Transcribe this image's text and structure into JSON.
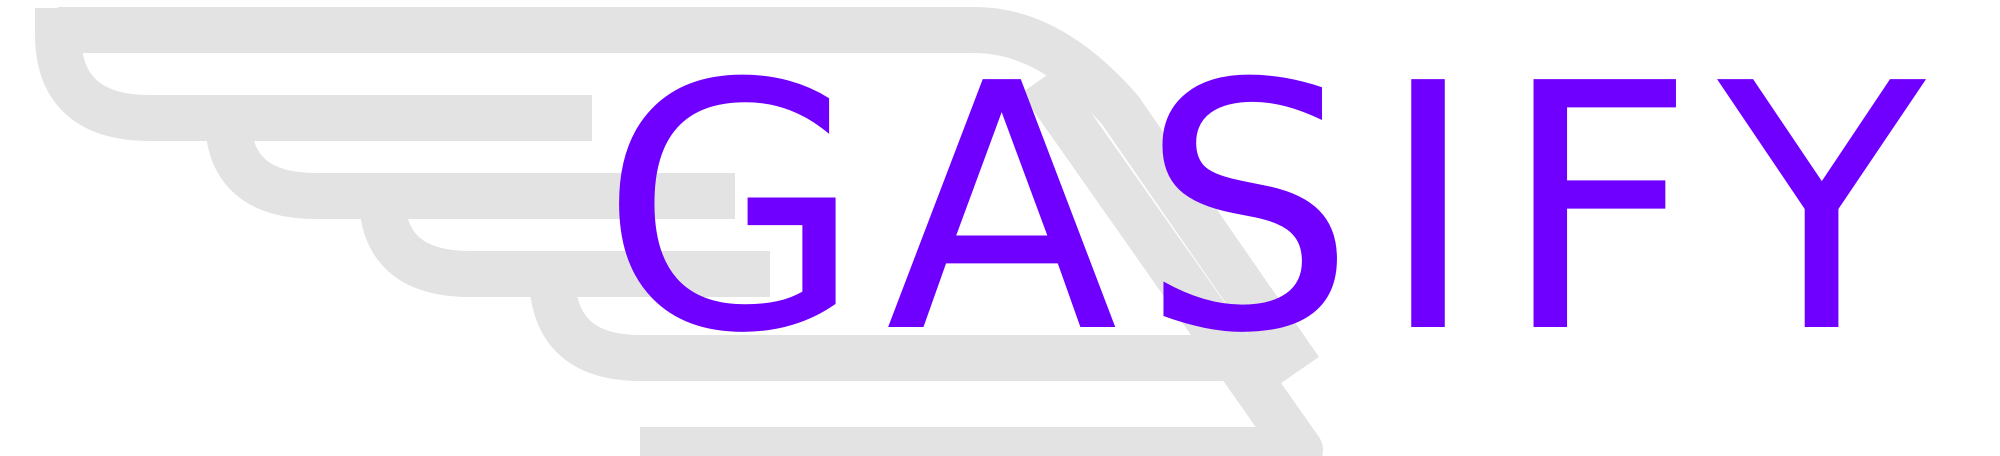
{
  "logo": {
    "wordmark": "GASIFY",
    "colors": {
      "text": "#6f00ff",
      "wing": "#e3e3e3",
      "background": "#ffffff"
    },
    "icon": "wing-speed-lines-icon"
  }
}
